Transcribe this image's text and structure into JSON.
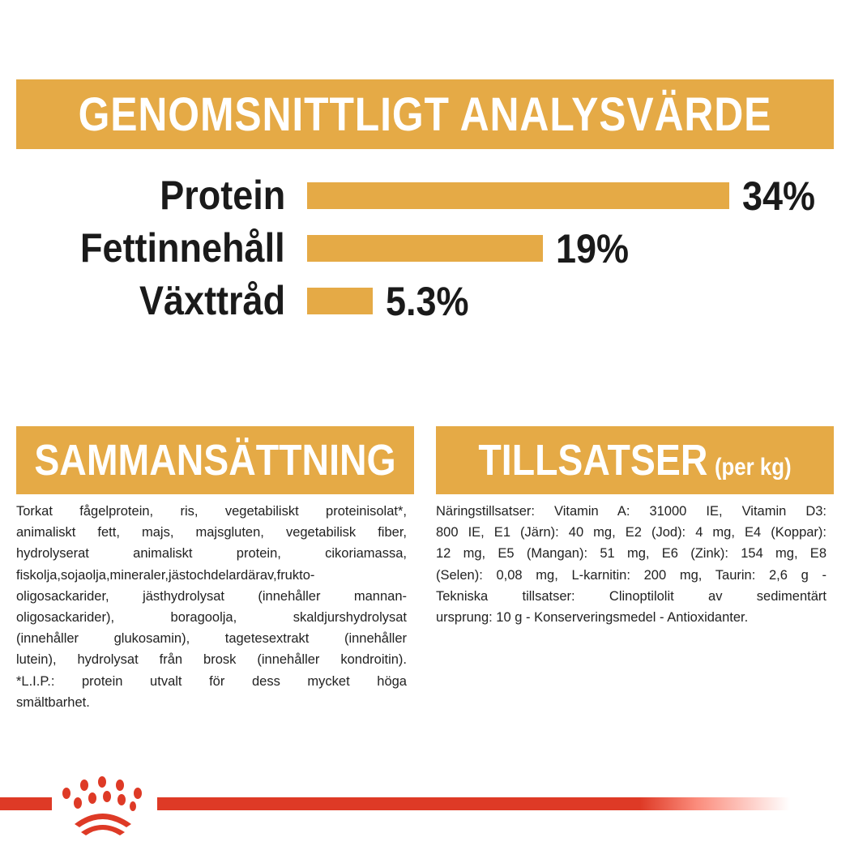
{
  "title": "GENOMSNITTLIGT ANALYSVÄRDE",
  "chart_data": {
    "type": "bar",
    "orientation": "horizontal",
    "categories": [
      "Protein",
      "Fettinnehåll",
      "Växttråd"
    ],
    "values": [
      34,
      19,
      5.3
    ],
    "value_labels": [
      "34%",
      "19%",
      "5.3%"
    ],
    "unit": "%",
    "bar_color": "#E5AA46",
    "grid": false
  },
  "sections": {
    "ingredients": {
      "title": "SAMMANSÄTTNING",
      "lines": [
        "Torkat fågelprotein, ris, vegetabiliskt proteinisolat*,",
        "animaliskt fett, majs, majsgluten, vegetabilisk fiber,",
        "hydrolyserat animaliskt protein, cikoriamassa,",
        "fiskolja,sojaolja,mineraler,jästochdelardärav,frukto-",
        "oligosackarider, jästhydrolysat (innehåller mannan-",
        "oligosackarider), boragoolja, skaldjurshydrolysat",
        "(innehåller glukosamin), tagetesextrakt (innehåller",
        "lutein), hydrolysat från brosk (innehåller kondroitin).",
        "*L.I.P.: protein utvalt för dess mycket höga",
        "smältbarhet."
      ]
    },
    "additives": {
      "title": "TILLSATSER",
      "title_suffix": "(per kg)",
      "lines": [
        "Näringstillsatser: Vitamin A: 31000 IE, Vitamin D3:",
        "800 IE, E1 (Järn): 40 mg, E2 (Jod): 4 mg, E4 (Koppar):",
        "12 mg, E5 (Mangan): 51 mg, E6 (Zink): 154 mg, E8",
        "(Selen): 0,08 mg, L-karnitin: 200 mg, Taurin: 2,6 g -",
        "Tekniska tillsatser: Clinoptilolit av sedimentärt",
        "ursprung: 10 g - Konserveringsmedel - Antioxidanter."
      ]
    }
  },
  "brand": {
    "logo": "royal-canin-crown-logo",
    "color": "#DE3A26"
  }
}
